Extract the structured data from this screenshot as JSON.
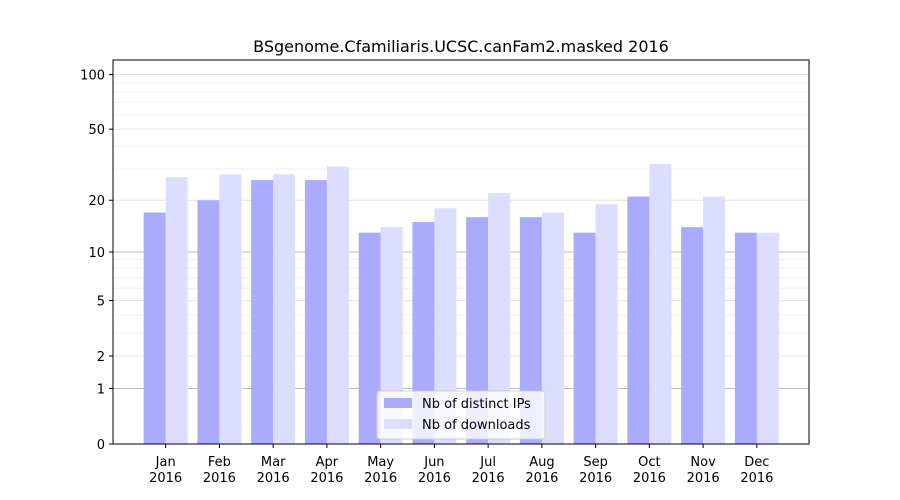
{
  "chart_data": {
    "type": "bar",
    "title": "BSgenome.Cfamiliaris.UCSC.canFam2.masked 2016",
    "xlabel": "",
    "ylabel": "",
    "y_scale": "log(1+y)",
    "ylim": [
      0,
      120
    ],
    "y_ticks": [
      0,
      1,
      2,
      5,
      10,
      20,
      50,
      100
    ],
    "categories": [
      [
        "Jan",
        "2016"
      ],
      [
        "Feb",
        "2016"
      ],
      [
        "Mar",
        "2016"
      ],
      [
        "Apr",
        "2016"
      ],
      [
        "May",
        "2016"
      ],
      [
        "Jun",
        "2016"
      ],
      [
        "Jul",
        "2016"
      ],
      [
        "Aug",
        "2016"
      ],
      [
        "Sep",
        "2016"
      ],
      [
        "Oct",
        "2016"
      ],
      [
        "Nov",
        "2016"
      ],
      [
        "Dec",
        "2016"
      ]
    ],
    "series": [
      {
        "name": "Nb of distinct IPs",
        "color": "#aaaaff",
        "values": [
          17,
          20,
          26,
          26,
          13,
          15,
          16,
          16,
          13,
          21,
          14,
          13
        ]
      },
      {
        "name": "Nb of downloads",
        "color": "#ddddff",
        "values": [
          27,
          28,
          28,
          31,
          14,
          18,
          22,
          17,
          19,
          32,
          21,
          13
        ]
      }
    ],
    "legend_position": "lower-center",
    "grid": true
  }
}
